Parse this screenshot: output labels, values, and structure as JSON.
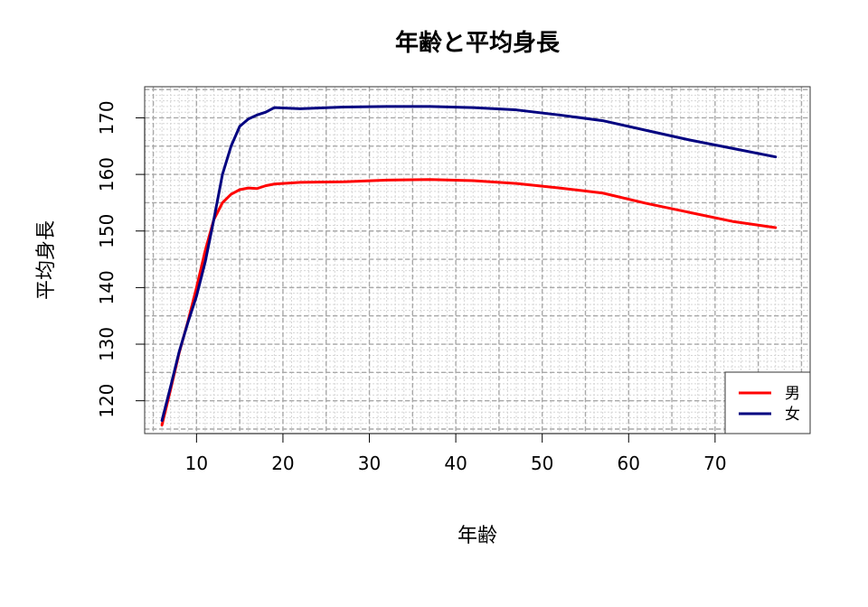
{
  "chart_data": {
    "type": "line",
    "title": "年齢と平均身長",
    "xlabel": "年齢",
    "ylabel": "平均身長",
    "xlim": [
      4,
      81
    ],
    "ylim": [
      114.2,
      175.5
    ],
    "x_ticks": [
      10,
      20,
      30,
      40,
      50,
      60,
      70
    ],
    "y_ticks": [
      120,
      130,
      140,
      150,
      160,
      170
    ],
    "grid": true,
    "legend_position": "bottom-right",
    "series": [
      {
        "name": "男",
        "color": "#ff0000",
        "x": [
          6,
          7,
          8,
          9,
          10,
          11,
          12,
          13,
          14,
          15,
          16,
          17,
          18,
          19,
          22,
          27,
          32,
          37,
          42,
          47,
          52,
          57,
          62,
          67,
          72,
          77
        ],
        "y": [
          115.7,
          122.0,
          128.5,
          134.0,
          140.0,
          146.5,
          152.0,
          155.0,
          156.5,
          157.3,
          157.6,
          157.5,
          158.0,
          158.3,
          158.6,
          158.7,
          159.0,
          159.1,
          158.9,
          158.4,
          157.6,
          156.7,
          154.9,
          153.3,
          151.7,
          150.6
        ]
      },
      {
        "name": "女",
        "color": "#000080",
        "x": [
          6,
          7,
          8,
          9,
          10,
          11,
          12,
          13,
          14,
          15,
          16,
          17,
          18,
          19,
          22,
          27,
          32,
          37,
          42,
          47,
          52,
          57,
          62,
          67,
          72,
          77
        ],
        "y": [
          116.5,
          122.5,
          128.7,
          133.8,
          138.5,
          144.5,
          152.0,
          160.0,
          165.0,
          168.5,
          169.8,
          170.5,
          171.0,
          171.8,
          171.6,
          171.9,
          172.0,
          172.0,
          171.8,
          171.4,
          170.5,
          169.5,
          167.8,
          166.1,
          164.6,
          163.1
        ]
      }
    ]
  }
}
